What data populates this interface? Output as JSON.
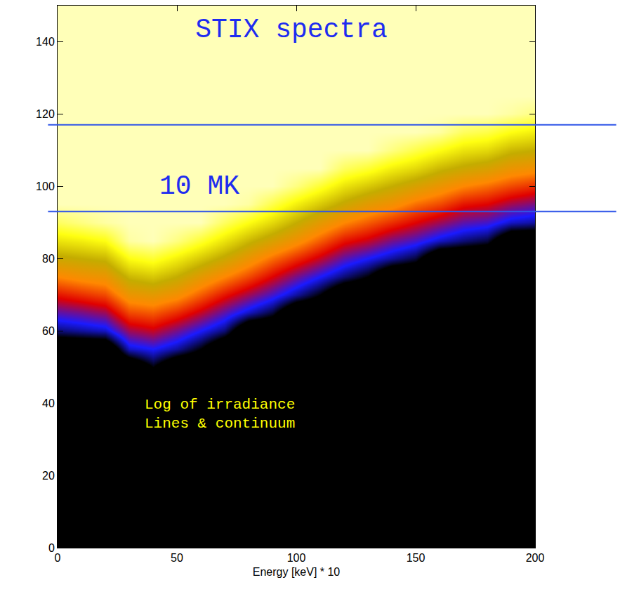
{
  "chart_data": {
    "type": "heatmap",
    "title": "STIX spectra",
    "x_label": "Energy [keV] * 10",
    "annotations": [
      "10 MK",
      "Log of irradiance",
      "Lines & continuum"
    ],
    "reference_lines": [
      93,
      117
    ],
    "xlim": [
      0,
      200
    ],
    "ylim": [
      0,
      150
    ],
    "xticks": [
      0,
      50,
      100,
      150,
      200
    ],
    "yticks": [
      0,
      20,
      40,
      60,
      80,
      100,
      120,
      140
    ],
    "zlim": [
      0,
      10
    ],
    "x": [
      0,
      10,
      20,
      30,
      40,
      50,
      60,
      70,
      80,
      90,
      100,
      110,
      120,
      130,
      140,
      150,
      160,
      170,
      180,
      190,
      200
    ],
    "y": [
      0,
      5,
      10,
      15,
      20,
      25,
      30,
      35,
      40,
      45,
      50,
      55,
      60,
      65,
      70,
      75,
      80,
      85,
      90,
      95,
      100,
      105,
      110,
      115,
      120,
      125,
      130,
      135,
      140,
      145,
      150
    ],
    "z": [
      [
        0,
        0,
        0,
        0,
        0,
        0,
        0,
        0,
        0,
        0,
        0,
        0,
        0,
        0,
        0,
        0,
        0,
        0,
        0,
        0,
        0
      ],
      [
        0,
        0,
        0,
        0,
        0,
        0,
        0,
        0,
        0,
        0,
        0,
        0,
        0,
        0,
        0,
        0,
        0,
        0,
        0,
        0,
        0
      ],
      [
        0,
        0,
        0,
        0,
        0,
        0,
        0,
        0,
        0,
        0,
        0,
        0,
        0,
        0,
        0,
        0,
        0,
        0,
        0,
        0,
        0
      ],
      [
        0,
        0,
        0,
        0,
        0,
        0,
        0,
        0,
        0,
        0,
        0,
        0,
        0,
        0,
        0,
        0,
        0,
        0,
        0,
        0,
        0
      ],
      [
        0,
        0,
        0,
        0,
        0,
        0,
        0,
        0,
        0,
        0,
        0,
        0,
        0,
        0,
        0,
        0,
        0,
        0,
        0,
        0,
        0
      ],
      [
        0,
        0,
        0,
        0,
        0,
        0,
        0,
        0,
        0,
        0,
        0,
        0,
        0,
        0,
        0,
        0,
        0,
        0,
        0,
        0,
        0
      ],
      [
        0,
        0,
        0,
        0,
        0,
        0,
        0,
        0,
        0,
        0,
        0,
        0,
        0,
        0,
        0,
        0,
        0,
        0,
        0,
        0,
        0
      ],
      [
        0,
        0,
        0,
        0,
        0,
        0,
        0,
        0,
        0,
        0,
        0,
        0,
        0,
        0,
        0,
        0,
        0,
        0,
        0,
        0,
        0
      ],
      [
        0,
        0,
        0,
        0,
        0,
        0,
        0,
        0,
        0,
        0,
        0,
        0,
        0,
        0,
        0,
        0,
        0,
        0,
        0,
        0,
        0
      ],
      [
        0,
        0,
        0,
        0,
        0,
        0,
        0,
        0,
        0,
        0,
        0,
        0,
        0,
        0,
        0,
        0,
        0,
        0,
        0,
        0,
        0
      ],
      [
        0,
        0,
        0,
        0,
        1.2,
        0,
        0,
        0,
        0,
        0,
        0,
        0,
        0,
        0,
        0,
        0,
        0,
        0,
        0,
        0,
        0
      ],
      [
        0,
        0,
        0,
        2.2,
        2.5,
        2.0,
        1.2,
        0,
        0,
        0,
        0,
        0,
        0,
        0,
        0,
        0,
        0,
        0,
        0,
        0,
        0
      ],
      [
        1.8,
        2.0,
        2.2,
        3.5,
        3.8,
        3.2,
        2.5,
        1.8,
        0,
        0,
        0,
        0,
        0,
        0,
        0,
        0,
        0,
        0,
        0,
        0,
        0
      ],
      [
        3.0,
        3.2,
        3.5,
        4.8,
        5.0,
        4.5,
        3.8,
        3.0,
        2.2,
        1.5,
        0,
        0,
        0,
        0,
        0,
        0,
        0,
        0,
        0,
        0,
        0
      ],
      [
        4.2,
        4.5,
        4.8,
        6.0,
        6.2,
        5.8,
        5.0,
        4.2,
        3.5,
        2.8,
        2.0,
        1.2,
        0,
        0,
        0,
        0,
        0,
        0,
        0,
        0,
        0
      ],
      [
        5.5,
        5.8,
        6.0,
        7.2,
        7.5,
        7.0,
        6.2,
        5.5,
        4.8,
        4.0,
        3.2,
        2.5,
        1.8,
        1.2,
        0,
        0,
        0,
        0,
        0,
        0,
        0
      ],
      [
        6.8,
        7.0,
        7.2,
        8.5,
        8.8,
        8.2,
        7.5,
        6.8,
        6.0,
        5.2,
        4.5,
        3.8,
        3.0,
        2.5,
        2.0,
        1.5,
        0,
        0,
        0,
        0,
        0
      ],
      [
        8.0,
        8.2,
        8.5,
        9.8,
        10,
        9.5,
        8.8,
        8.0,
        7.2,
        6.5,
        5.8,
        5.0,
        4.2,
        3.8,
        3.2,
        2.8,
        2.2,
        1.8,
        1.5,
        0,
        0
      ],
      [
        9.2,
        9.5,
        9.8,
        10,
        10,
        10,
        10,
        9.2,
        8.5,
        7.8,
        7.0,
        6.2,
        5.5,
        5.0,
        4.5,
        4.0,
        3.5,
        3.0,
        2.8,
        2.2,
        2.0
      ],
      [
        10,
        10,
        10,
        10,
        10,
        10,
        10,
        10,
        9.8,
        9.0,
        8.2,
        7.5,
        6.8,
        6.2,
        5.8,
        5.2,
        4.8,
        4.2,
        4.0,
        3.5,
        3.2
      ],
      [
        10,
        10,
        10,
        10,
        10,
        10,
        10,
        10,
        10,
        10,
        9.5,
        8.8,
        8.0,
        7.5,
        7.0,
        6.5,
        6.0,
        5.5,
        5.2,
        4.8,
        4.5
      ],
      [
        10,
        10,
        10,
        10,
        10,
        10,
        10,
        10,
        10,
        10,
        10,
        10,
        9.2,
        8.8,
        8.2,
        7.8,
        7.2,
        6.8,
        6.5,
        6.0,
        5.8
      ],
      [
        10,
        10,
        10,
        10,
        10,
        10,
        10,
        10,
        10,
        10,
        10,
        10,
        10,
        10,
        9.5,
        9.0,
        8.5,
        8.0,
        7.8,
        7.2,
        7.0
      ],
      [
        10,
        10,
        10,
        10,
        10,
        10,
        10,
        10,
        10,
        10,
        10,
        10,
        10,
        10,
        10,
        10,
        9.8,
        9.2,
        9.0,
        8.5,
        8.2
      ],
      [
        10,
        10,
        10,
        10,
        10,
        10,
        10,
        10,
        10,
        10,
        10,
        10,
        10,
        10,
        10,
        10,
        10,
        10,
        10,
        9.8,
        9.5
      ],
      [
        10,
        10,
        10,
        10,
        10,
        10,
        10,
        10,
        10,
        10,
        10,
        10,
        10,
        10,
        10,
        10,
        10,
        10,
        10,
        10,
        10
      ],
      [
        10,
        10,
        10,
        10,
        10,
        10,
        10,
        10,
        10,
        10,
        10,
        10,
        10,
        10,
        10,
        10,
        10,
        10,
        10,
        10,
        10
      ],
      [
        10,
        10,
        10,
        10,
        10,
        10,
        10,
        10,
        10,
        10,
        10,
        10,
        10,
        10,
        10,
        10,
        10,
        10,
        10,
        10,
        10
      ],
      [
        10,
        10,
        10,
        10,
        10,
        10,
        10,
        10,
        10,
        10,
        10,
        10,
        10,
        10,
        10,
        10,
        10,
        10,
        10,
        10,
        10
      ],
      [
        10,
        10,
        10,
        10,
        10,
        10,
        10,
        10,
        10,
        10,
        10,
        10,
        10,
        10,
        10,
        10,
        10,
        10,
        10,
        10,
        10
      ],
      [
        10,
        10,
        10,
        10,
        10,
        10,
        10,
        10,
        10,
        10,
        10,
        10,
        10,
        10,
        10,
        10,
        10,
        10,
        10,
        10,
        10
      ]
    ]
  }
}
